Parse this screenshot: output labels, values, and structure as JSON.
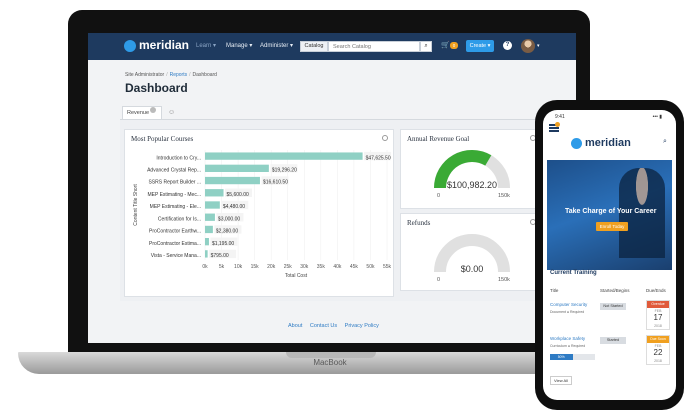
{
  "laptop": {
    "brand_label": "MacBook",
    "app": {
      "logo_text": "meridian",
      "nav": {
        "learn": "Learn ▾",
        "manage": "Manage ▾",
        "administer": "Administer ▾"
      },
      "catalog_label": "Catalog",
      "search_placeholder": "Search Catalog",
      "search_icon": "⌕",
      "cart_icon": "cart-icon",
      "cart_count": "0",
      "create_label": "Create ▾",
      "help_label": "?",
      "avatar_caret": "▾",
      "breadcrumb": [
        "Site Administrator",
        "Reports",
        "Dashboard"
      ],
      "page_title": "Dashboard",
      "tabs": {
        "revenue": "Revenue"
      },
      "cards": {
        "popular_title": "Most Popular Courses",
        "revenue_title": "Annual Revenue Goal",
        "refunds_title": "Refunds"
      },
      "revenue_gauge": {
        "value_label": "$100,982.20",
        "min_label": "0",
        "max_label": "150k",
        "fraction": 0.67,
        "fill_color": "#3aaa35",
        "track_color": "#e0e0e0"
      },
      "refunds_gauge": {
        "value_label": "$0.00",
        "min_label": "0",
        "max_label": "150k",
        "fraction": 0.0,
        "track_color": "#e0e0e0"
      },
      "footer": [
        "About",
        "Contact Us",
        "Privacy Policy"
      ]
    }
  },
  "chart_data": {
    "type": "bar",
    "orientation": "horizontal",
    "categories": [
      "Introduction to Cry...",
      "Advanced Crystal Rep...",
      "SSRS Report Builder ...",
      "MEP Estimating - Mec...",
      "MEP Estimating - Ele...",
      "Certification for Is...",
      "ProContractor Earthw...",
      "ProContractor Estima...",
      "Vista - Service Mana..."
    ],
    "values": [
      47625.5,
      19296.2,
      16610.5,
      5600,
      4480,
      3000,
      2380,
      1195,
      795
    ],
    "data_labels": [
      "$47,625.50",
      "$19,296.20",
      "$16,610.50",
      "$5,600.00",
      "$4,480.00",
      "$3,000.00",
      "$2,380.00",
      "$1,195.00",
      "$795.00"
    ],
    "xlabel": "Total Cost",
    "ylabel": "Content Title Short",
    "xlim": [
      0,
      55000
    ],
    "x_ticks": [
      "0k",
      "5k",
      "10k",
      "15k",
      "20k",
      "25k",
      "30k",
      "35k",
      "40k",
      "45k",
      "50k",
      "55k"
    ],
    "bar_color": "#8fd0c4"
  },
  "phone": {
    "time": "9:41",
    "signal": "••• ▮",
    "logo_text": "meridian",
    "search_icon": "⌕",
    "hero_title": "Take Charge of Your Career",
    "hero_button": "Enroll Today",
    "section_title": "Current Training",
    "table_headers": {
      "title": "Title",
      "started": "Started/Begins",
      "due": "Due/Ends"
    },
    "rows": [
      {
        "title": "Computer Security",
        "sub": "Document  ● Required",
        "status": "Not Started",
        "tag": "Overdue",
        "tag_color": "#e05a3a",
        "month": "FEB",
        "day": "17",
        "year": "2018"
      },
      {
        "title": "Workplace Safety",
        "sub": "Curriculum  ● Required",
        "status": "Started",
        "tag": "Due Soon",
        "tag_color": "#f0a020",
        "month": "FEB",
        "day": "22",
        "year": "2018",
        "progress_label": "50%",
        "progress": 0.5
      }
    ],
    "view_all": "View All"
  }
}
